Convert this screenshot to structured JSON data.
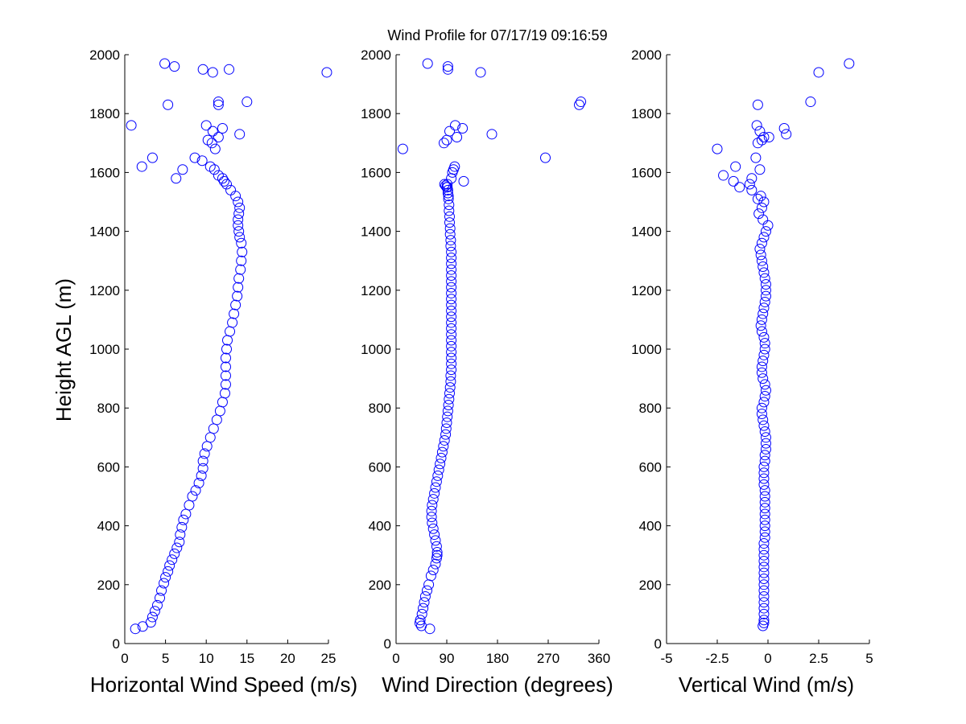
{
  "title": "Wind Profile for  07/17/19 09:16:59",
  "colors": {
    "marker": "#0000ff",
    "axis": "#000000",
    "background": "#ffffff"
  },
  "chart_data": [
    {
      "type": "scatter",
      "xlabel": "Horizontal Wind Speed (m/s)",
      "ylabel": "Height AGL (m)",
      "xlim": [
        0,
        25
      ],
      "ylim": [
        0,
        2000
      ],
      "xticks": [
        "0",
        "5",
        "10",
        "15",
        "20",
        "25"
      ],
      "xtick_values": [
        0,
        5,
        10,
        15,
        20,
        25
      ],
      "yticks": [
        "0",
        "200",
        "400",
        "600",
        "800",
        "1000",
        "1200",
        "1400",
        "1600",
        "1800",
        "2000"
      ],
      "ytick_values": [
        0,
        200,
        400,
        600,
        800,
        1000,
        1200,
        1400,
        1600,
        1800,
        2000
      ],
      "marker": "open-circle",
      "x": [
        1.3,
        2.2,
        3.2,
        3.4,
        3.7,
        4.0,
        4.3,
        4.5,
        4.8,
        5.0,
        5.3,
        5.5,
        5.8,
        6.1,
        6.4,
        6.7,
        6.8,
        7.0,
        7.2,
        7.5,
        7.9,
        8.3,
        8.7,
        9.1,
        9.4,
        9.6,
        9.6,
        9.8,
        10.1,
        10.5,
        10.9,
        11.3,
        11.7,
        12.0,
        12.3,
        12.4,
        12.4,
        12.4,
        12.4,
        12.5,
        12.6,
        12.9,
        13.2,
        13.4,
        13.6,
        13.8,
        13.9,
        14.0,
        14.2,
        14.3,
        14.4,
        14.3,
        14.1,
        14.0,
        13.9,
        13.9,
        14.0,
        14.1,
        13.9,
        13.6,
        13.0,
        12.5,
        12.2,
        12.0,
        11.5,
        11.0,
        10.5,
        9.5,
        8.6,
        11.1,
        10.7,
        10.2,
        11.5,
        14.1,
        10.8,
        12.0,
        10.0,
        11.5,
        15.0,
        10.8,
        9.6,
        12.8,
        6.1,
        4.9,
        0.8,
        7.1,
        6.3,
        2.1,
        3.4,
        5.3,
        11.5,
        24.8
      ],
      "y": [
        50,
        58,
        72,
        90,
        110,
        130,
        155,
        180,
        205,
        225,
        245,
        265,
        285,
        305,
        325,
        345,
        370,
        395,
        420,
        440,
        470,
        500,
        520,
        545,
        570,
        595,
        620,
        645,
        670,
        700,
        730,
        760,
        790,
        820,
        850,
        880,
        910,
        940,
        970,
        1000,
        1030,
        1060,
        1090,
        1120,
        1150,
        1180,
        1210,
        1240,
        1270,
        1300,
        1330,
        1360,
        1380,
        1400,
        1420,
        1440,
        1460,
        1480,
        1500,
        1520,
        1540,
        1560,
        1570,
        1580,
        1590,
        1610,
        1620,
        1640,
        1650,
        1680,
        1700,
        1710,
        1720,
        1730,
        1740,
        1750,
        1760,
        1830,
        1840,
        1940,
        1950,
        1950,
        1960,
        1970,
        1760,
        1610,
        1580,
        1620,
        1650,
        1830,
        1840,
        1940
      ]
    },
    {
      "type": "scatter",
      "xlabel": "Wind Direction (degrees)",
      "ylabel": "",
      "xlim": [
        0,
        360
      ],
      "ylim": [
        0,
        2000
      ],
      "xticks": [
        "0",
        "90",
        "180",
        "270",
        "360"
      ],
      "xtick_values": [
        0,
        90,
        180,
        270,
        360
      ],
      "yticks": [
        "0",
        "200",
        "400",
        "600",
        "800",
        "1000",
        "1200",
        "1400",
        "1600",
        "1800",
        "2000"
      ],
      "ytick_values": [
        0,
        200,
        400,
        600,
        800,
        1000,
        1200,
        1400,
        1600,
        1800,
        2000
      ],
      "marker": "open-circle",
      "x": [
        60,
        45,
        42,
        43,
        46,
        48,
        50,
        52,
        55,
        58,
        62,
        66,
        70,
        72,
        73,
        73,
        72,
        70,
        68,
        66,
        64,
        63,
        63,
        64,
        66,
        68,
        70,
        72,
        74,
        76,
        78,
        80,
        82,
        84,
        86,
        88,
        89,
        90,
        91,
        92,
        93,
        94,
        95,
        96,
        97,
        97,
        98,
        98,
        98,
        98,
        98,
        98,
        98,
        98,
        98,
        98,
        98,
        98,
        98,
        98,
        98,
        98,
        98,
        98,
        98,
        98,
        98,
        97,
        97,
        96,
        96,
        95,
        95,
        94,
        94,
        93,
        93,
        92,
        92,
        91,
        91,
        90,
        88,
        86,
        98,
        100,
        102,
        104,
        120,
        108,
        170,
        12,
        95,
        105,
        85,
        90,
        150,
        56,
        92,
        92,
        265,
        325,
        328,
        118
      ],
      "y": [
        50,
        60,
        70,
        80,
        100,
        120,
        140,
        160,
        180,
        200,
        230,
        250,
        270,
        290,
        300,
        310,
        330,
        350,
        370,
        390,
        410,
        430,
        450,
        470,
        490,
        510,
        530,
        550,
        570,
        590,
        610,
        630,
        650,
        670,
        690,
        710,
        730,
        750,
        770,
        790,
        810,
        830,
        850,
        870,
        890,
        910,
        930,
        950,
        970,
        990,
        1010,
        1030,
        1050,
        1070,
        1090,
        1110,
        1130,
        1150,
        1170,
        1190,
        1210,
        1230,
        1250,
        1270,
        1290,
        1310,
        1330,
        1350,
        1370,
        1390,
        1410,
        1430,
        1450,
        1470,
        1490,
        1510,
        1520,
        1530,
        1540,
        1550,
        1560,
        1550,
        1555,
        1560,
        1580,
        1600,
        1610,
        1620,
        1570,
        1720,
        1730,
        1680,
        1740,
        1760,
        1700,
        1710,
        1940,
        1970,
        1950,
        1960,
        1650,
        1830,
        1840,
        1750
      ]
    },
    {
      "type": "scatter",
      "xlabel": "Vertical Wind (m/s)",
      "ylabel": "",
      "xlim": [
        -5,
        5
      ],
      "ylim": [
        0,
        2000
      ],
      "xticks": [
        "-5",
        "-2.5",
        "0",
        "2.5",
        "5"
      ],
      "xtick_values": [
        -5,
        -2.5,
        0,
        2.5,
        5
      ],
      "yticks": [
        "0",
        "200",
        "400",
        "600",
        "800",
        "1000",
        "1200",
        "1400",
        "1600",
        "1800",
        "2000"
      ],
      "ytick_values": [
        0,
        200,
        400,
        600,
        800,
        1000,
        1200,
        1400,
        1600,
        1800,
        2000
      ],
      "marker": "open-circle",
      "x": [
        -0.25,
        -0.2,
        -0.2,
        -0.2,
        -0.2,
        -0.2,
        -0.2,
        -0.2,
        -0.2,
        -0.2,
        -0.2,
        -0.2,
        -0.2,
        -0.2,
        -0.2,
        -0.2,
        -0.15,
        -0.15,
        -0.15,
        -0.15,
        -0.15,
        -0.15,
        -0.15,
        -0.15,
        -0.15,
        -0.2,
        -0.2,
        -0.2,
        -0.2,
        -0.15,
        -0.15,
        -0.1,
        -0.1,
        -0.1,
        -0.15,
        -0.2,
        -0.25,
        -0.3,
        -0.3,
        -0.2,
        -0.15,
        -0.1,
        -0.15,
        -0.25,
        -0.3,
        -0.3,
        -0.25,
        -0.2,
        -0.15,
        -0.15,
        -0.2,
        -0.3,
        -0.35,
        -0.3,
        -0.25,
        -0.2,
        -0.15,
        -0.1,
        -0.1,
        -0.1,
        -0.15,
        -0.2,
        -0.25,
        -0.3,
        -0.35,
        -0.4,
        -0.3,
        -0.2,
        -0.1,
        0.0,
        -0.25,
        -0.45,
        -0.3,
        -0.2,
        -0.5,
        -0.35,
        -0.8,
        -0.9,
        -1.4,
        -1.7,
        -2.2,
        -0.4,
        -0.6,
        -2.5,
        -1.6,
        -0.8,
        -0.5,
        -0.3,
        -0.4,
        -0.55,
        0.8,
        0.9,
        -0.2,
        0.05,
        -0.5,
        2.1,
        2.5,
        4.0
      ],
      "y": [
        60,
        70,
        80,
        100,
        120,
        140,
        160,
        180,
        200,
        220,
        240,
        260,
        280,
        300,
        320,
        340,
        360,
        380,
        400,
        420,
        440,
        460,
        480,
        500,
        520,
        540,
        560,
        580,
        600,
        620,
        640,
        660,
        680,
        700,
        720,
        740,
        760,
        780,
        800,
        820,
        840,
        860,
        880,
        900,
        920,
        940,
        960,
        980,
        1000,
        1020,
        1040,
        1060,
        1080,
        1100,
        1120,
        1140,
        1160,
        1180,
        1200,
        1220,
        1240,
        1260,
        1280,
        1300,
        1320,
        1340,
        1360,
        1380,
        1400,
        1420,
        1440,
        1460,
        1480,
        1500,
        1510,
        1520,
        1540,
        1560,
        1550,
        1570,
        1590,
        1610,
        1650,
        1680,
        1620,
        1580,
        1700,
        1710,
        1740,
        1760,
        1750,
        1730,
        1720,
        1720,
        1830,
        1840,
        1940,
        1970
      ]
    }
  ]
}
